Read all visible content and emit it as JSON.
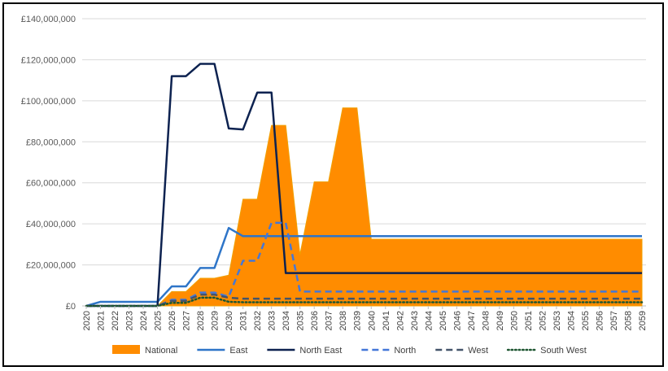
{
  "chart_data": {
    "type": "area",
    "title": "",
    "xlabel": "",
    "ylabel": "",
    "ylim": [
      0,
      140000000
    ],
    "yticks": [
      "£0",
      "£20,000,000",
      "£40,000,000",
      "£60,000,000",
      "£80,000,000",
      "£100,000,000",
      "£120,000,000",
      "£140,000,000"
    ],
    "grid": true,
    "legend_position": "bottom",
    "x": [
      "2020",
      "2021",
      "2022",
      "2023",
      "2024",
      "2025",
      "2026",
      "2027",
      "2028",
      "2029",
      "2030",
      "2031",
      "2032",
      "2033",
      "2034",
      "2035",
      "2036",
      "2037",
      "2038",
      "2039",
      "2040",
      "2041",
      "2042",
      "2043",
      "2044",
      "2045",
      "2046",
      "2047",
      "2048",
      "2049",
      "2050",
      "2051",
      "2052",
      "2053",
      "2054",
      "2055",
      "2056",
      "2057",
      "2058",
      "2059"
    ],
    "series": [
      {
        "name": "National",
        "kind": "area",
        "color": "#FF8C00",
        "values": [
          0,
          0,
          0,
          0,
          0,
          0,
          7000000,
          7000000,
          13500000,
          13500000,
          15000000,
          52000000,
          52000000,
          88000000,
          88000000,
          25000000,
          60500000,
          60500000,
          96500000,
          96500000,
          32500000,
          32500000,
          32500000,
          32500000,
          32500000,
          32500000,
          32500000,
          32500000,
          32500000,
          32500000,
          32500000,
          32500000,
          32500000,
          32500000,
          32500000,
          32500000,
          32500000,
          32500000,
          32500000,
          32500000
        ]
      },
      {
        "name": "East",
        "kind": "line",
        "color": "#2E75C8",
        "dash": "solid",
        "values": [
          0,
          2000000,
          2000000,
          2000000,
          2000000,
          2000000,
          9500000,
          9500000,
          18500000,
          18500000,
          38000000,
          34000000,
          34000000,
          34000000,
          34000000,
          34000000,
          34000000,
          34000000,
          34000000,
          34000000,
          34000000,
          34000000,
          34000000,
          34000000,
          34000000,
          34000000,
          34000000,
          34000000,
          34000000,
          34000000,
          34000000,
          34000000,
          34000000,
          34000000,
          34000000,
          34000000,
          34000000,
          34000000,
          34000000,
          34000000
        ]
      },
      {
        "name": "North East",
        "kind": "line",
        "color": "#0D2250",
        "dash": "solid",
        "values": [
          0,
          0,
          0,
          0,
          0,
          0,
          112000000,
          112000000,
          118000000,
          118000000,
          86500000,
          86000000,
          104000000,
          104000000,
          16000000,
          16000000,
          16000000,
          16000000,
          16000000,
          16000000,
          16000000,
          16000000,
          16000000,
          16000000,
          16000000,
          16000000,
          16000000,
          16000000,
          16000000,
          16000000,
          16000000,
          16000000,
          16000000,
          16000000,
          16000000,
          16000000,
          16000000,
          16000000,
          16000000,
          16000000
        ]
      },
      {
        "name": "North",
        "kind": "line",
        "color": "#4477D8",
        "dash": "dashed",
        "values": [
          0,
          0,
          0,
          0,
          0,
          0,
          3000000,
          3000000,
          6500000,
          6500000,
          4500000,
          22000000,
          22000000,
          40500000,
          40500000,
          7000000,
          7000000,
          7000000,
          7000000,
          7000000,
          7000000,
          7000000,
          7000000,
          7000000,
          7000000,
          7000000,
          7000000,
          7000000,
          7000000,
          7000000,
          7000000,
          7000000,
          7000000,
          7000000,
          7000000,
          7000000,
          7000000,
          7000000,
          7000000,
          7000000
        ]
      },
      {
        "name": "West",
        "kind": "line",
        "color": "#44546A",
        "dash": "dashed",
        "values": [
          0,
          0,
          0,
          0,
          0,
          0,
          2500000,
          2500000,
          5500000,
          5500000,
          4000000,
          3500000,
          3500000,
          3500000,
          3500000,
          3500000,
          3500000,
          3500000,
          3500000,
          3500000,
          3500000,
          3500000,
          3500000,
          3500000,
          3500000,
          3500000,
          3500000,
          3500000,
          3500000,
          3500000,
          3500000,
          3500000,
          3500000,
          3500000,
          3500000,
          3500000,
          3500000,
          3500000,
          3500000,
          3500000
        ]
      },
      {
        "name": "South West",
        "kind": "line",
        "color": "#1E5631",
        "dash": "dotted",
        "values": [
          0,
          0,
          0,
          0,
          0,
          0,
          1500000,
          1500000,
          4000000,
          4000000,
          2000000,
          1800000,
          1800000,
          1800000,
          1800000,
          1800000,
          1800000,
          1800000,
          1800000,
          1800000,
          1800000,
          1800000,
          1800000,
          1800000,
          1800000,
          1800000,
          1800000,
          1800000,
          1800000,
          1800000,
          1800000,
          1800000,
          1800000,
          1800000,
          1800000,
          1800000,
          1800000,
          1800000,
          1800000,
          1800000
        ]
      }
    ]
  }
}
